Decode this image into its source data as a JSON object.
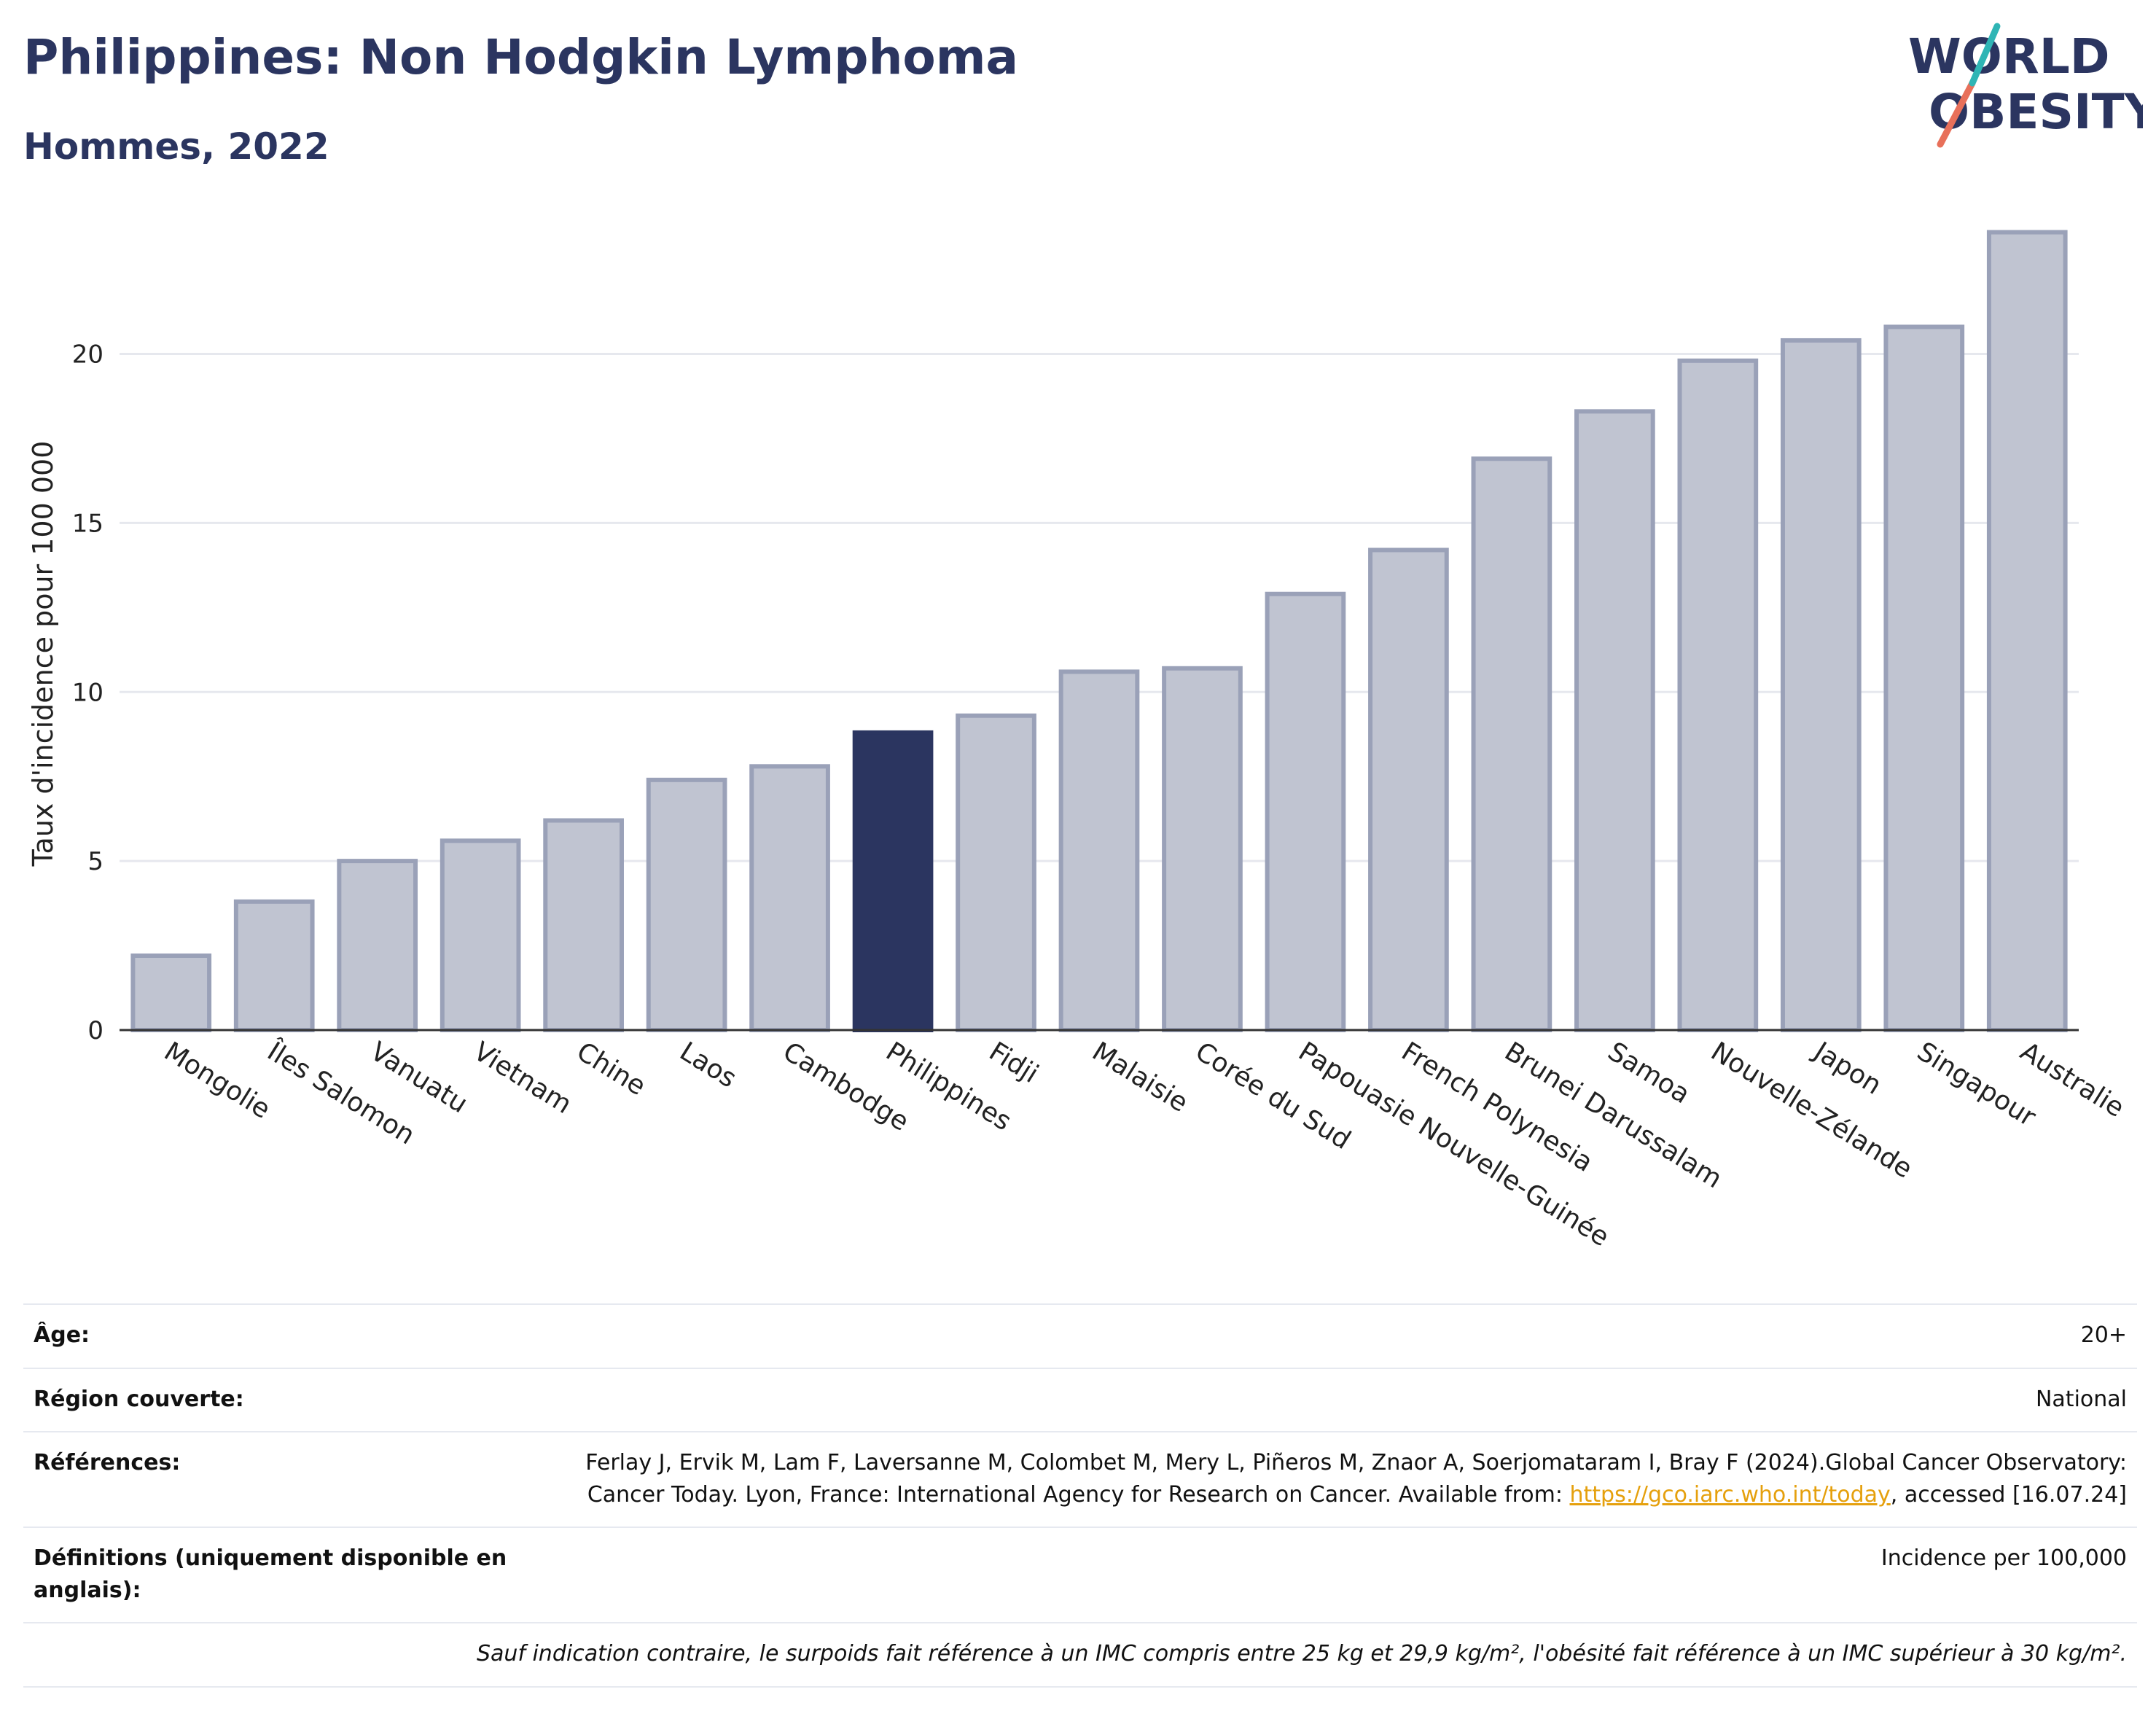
{
  "header": {
    "title": "Philippines: Non Hodgkin Lymphoma",
    "subtitle": "Hommes, 2022"
  },
  "logo": {
    "line1": "WORLD",
    "line2": "OBESITY"
  },
  "chart_data": {
    "type": "bar",
    "title": "Philippines: Non Hodgkin Lymphoma",
    "subtitle": "Hommes, 2022",
    "xlabel": "",
    "ylabel": "Taux d'incidence pour 100 000",
    "ylim": [
      0,
      24
    ],
    "yticks": [
      0,
      5,
      10,
      15,
      20
    ],
    "grid": true,
    "categories": [
      "Mongolie",
      "Îles Salomon",
      "Vanuatu",
      "Vietnam",
      "Chine",
      "Laos",
      "Cambodge",
      "Philippines",
      "Fidji",
      "Malaisie",
      "Corée du Sud",
      "Papouasie Nouvelle-Guinée",
      "French Polynesia",
      "Brunei Darussalam",
      "Samoa",
      "Nouvelle-Zélande",
      "Japon",
      "Singapour",
      "Australie"
    ],
    "values": [
      2.2,
      3.8,
      5.0,
      5.6,
      6.2,
      7.4,
      7.8,
      8.8,
      9.3,
      10.6,
      10.7,
      12.9,
      14.2,
      16.9,
      18.3,
      19.8,
      20.4,
      20.8,
      23.6
    ],
    "highlight": "Philippines",
    "colors": {
      "highlight": "#2b3560",
      "bar_fill": "#c0c4d1",
      "bar_stroke": "#9aa1b8",
      "grid": "#e6e8ee",
      "axis": "#333333"
    }
  },
  "info": {
    "age_label": "Âge:",
    "age_value": "20+",
    "region_label": "Région couverte:",
    "region_value": "National",
    "refs_label": "Références:",
    "refs_text_1": "Ferlay J, Ervik M, Lam F, Laversanne M, Colombet M, Mery L, Piñeros M, Znaor A, Soerjomataram I, Bray F (2024).Global Cancer Observatory: Cancer Today. Lyon, France: International Agency for Research on Cancer. Available from: ",
    "refs_link": "https://gco.iarc.who.int/today",
    "refs_text_2": ", accessed [16.07.24]",
    "defs_label": "Définitions (uniquement disponible en anglais):",
    "defs_value": "Incidence per 100,000",
    "note": "Sauf indication contraire, le surpoids fait référence à un IMC compris entre 25 kg et 29,9 kg/m², l'obésité fait référence à un IMC supérieur à 30 kg/m²."
  }
}
